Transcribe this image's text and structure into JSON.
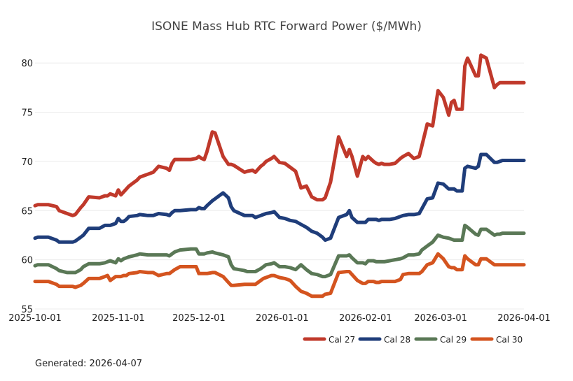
{
  "title": "ISONE Mass Hub RTC Forward Power ($/MWh)",
  "footer": "Generated: 2026-04-07",
  "chart_data": {
    "type": "line",
    "title": "ISONE Mass Hub RTC Forward Power ($/MWh)",
    "xlabel": "",
    "ylabel": "",
    "ylim": [
      55,
      82
    ],
    "xlim_days": [
      0,
      182
    ],
    "x_tick_days": [
      0,
      31,
      61,
      92,
      123,
      151,
      182
    ],
    "x_tick_labels": [
      "2025-10-01",
      "2025-11-01",
      "2025-12-01",
      "2026-01-01",
      "2026-02-01",
      "2026-03-01",
      "2026-04-01"
    ],
    "y_ticks": [
      55,
      60,
      65,
      70,
      75,
      80
    ],
    "y_tick_labels": [
      "55",
      "60",
      "65",
      "70",
      "75",
      "80"
    ],
    "grid": true,
    "legend_position": "bottom-right",
    "x_days": [
      0,
      1,
      5,
      8,
      9,
      12,
      14,
      15,
      17,
      18,
      20,
      24,
      26,
      27,
      28,
      30,
      31,
      32,
      33,
      34,
      35,
      38,
      39,
      42,
      43,
      44,
      46,
      49,
      50,
      51,
      52,
      54,
      58,
      60,
      61,
      62,
      63,
      64,
      66,
      67,
      70,
      72,
      73,
      74,
      78,
      79,
      81,
      82,
      84,
      85,
      86,
      88,
      89,
      91,
      93,
      95,
      97,
      99,
      101,
      103,
      105,
      107,
      108,
      110,
      113,
      116,
      117,
      118,
      120,
      122,
      123,
      124,
      126,
      127,
      128,
      129,
      130,
      132,
      134,
      136,
      137,
      139,
      141,
      143,
      144,
      146,
      148,
      150,
      152,
      154,
      155,
      156,
      157,
      159,
      160,
      161,
      164,
      165,
      166,
      168,
      171,
      172,
      173,
      174,
      176,
      177,
      180,
      182
    ],
    "series": [
      {
        "name": "Cal 27",
        "color": "#c0392b",
        "values": [
          65.5,
          65.6,
          65.6,
          65.4,
          65.0,
          64.7,
          64.5,
          64.6,
          65.3,
          65.6,
          66.4,
          66.3,
          66.5,
          66.5,
          66.7,
          66.5,
          67.1,
          66.6,
          66.9,
          67.2,
          67.5,
          68.1,
          68.4,
          68.7,
          68.8,
          68.9,
          69.5,
          69.3,
          69.1,
          69.8,
          70.2,
          70.2,
          70.2,
          70.3,
          70.5,
          70.3,
          70.2,
          71.0,
          73.0,
          72.9,
          70.5,
          69.7,
          69.7,
          69.6,
          68.9,
          69.0,
          69.1,
          68.9,
          69.5,
          69.7,
          70.0,
          70.3,
          70.5,
          69.9,
          69.8,
          69.4,
          69.0,
          67.3,
          67.5,
          66.4,
          66.1,
          66.1,
          66.3,
          67.9,
          72.5,
          70.5,
          71.2,
          70.5,
          68.5,
          70.5,
          70.2,
          70.5,
          70.0,
          69.8,
          69.7,
          69.8,
          69.7,
          69.7,
          69.8,
          70.3,
          70.5,
          70.8,
          70.3,
          70.5,
          71.6,
          73.8,
          73.6,
          77.2,
          76.5,
          74.7,
          76.0,
          76.2,
          75.3,
          75.3,
          79.7,
          80.5,
          78.7,
          78.7,
          80.8,
          80.5,
          77.5,
          77.8,
          78.0,
          78.0,
          78.0,
          78.0,
          78.0,
          78.0
        ]
      },
      {
        "name": "Cal 28",
        "color": "#1f3d7a",
        "values": [
          62.2,
          62.3,
          62.3,
          62.0,
          61.8,
          61.8,
          61.8,
          61.9,
          62.3,
          62.5,
          63.2,
          63.2,
          63.5,
          63.5,
          63.5,
          63.7,
          64.2,
          63.9,
          63.9,
          64.1,
          64.4,
          64.5,
          64.6,
          64.5,
          64.5,
          64.5,
          64.7,
          64.6,
          64.5,
          64.8,
          65.0,
          65.0,
          65.1,
          65.1,
          65.3,
          65.2,
          65.2,
          65.5,
          66.0,
          66.2,
          66.8,
          66.3,
          65.4,
          65.0,
          64.5,
          64.5,
          64.5,
          64.3,
          64.5,
          64.6,
          64.7,
          64.8,
          64.9,
          64.3,
          64.2,
          64.0,
          63.9,
          63.6,
          63.3,
          62.9,
          62.7,
          62.3,
          62.0,
          62.2,
          64.3,
          64.6,
          65.0,
          64.3,
          63.8,
          63.8,
          63.8,
          64.1,
          64.1,
          64.1,
          64.0,
          64.1,
          64.1,
          64.1,
          64.2,
          64.4,
          64.5,
          64.6,
          64.6,
          64.7,
          65.2,
          66.2,
          66.3,
          67.8,
          67.7,
          67.2,
          67.2,
          67.2,
          67.0,
          67.0,
          69.3,
          69.5,
          69.3,
          69.5,
          70.7,
          70.7,
          69.9,
          69.9,
          70.0,
          70.1,
          70.1,
          70.1,
          70.1,
          70.1
        ]
      },
      {
        "name": "Cal 29",
        "color": "#5a7856",
        "values": [
          59.4,
          59.5,
          59.5,
          59.1,
          58.9,
          58.7,
          58.7,
          58.7,
          59.0,
          59.3,
          59.6,
          59.6,
          59.7,
          59.8,
          59.9,
          59.7,
          60.1,
          59.9,
          60.1,
          60.2,
          60.3,
          60.5,
          60.6,
          60.5,
          60.5,
          60.5,
          60.5,
          60.5,
          60.4,
          60.6,
          60.8,
          61.0,
          61.1,
          61.1,
          60.6,
          60.6,
          60.6,
          60.7,
          60.8,
          60.7,
          60.5,
          60.3,
          59.5,
          59.1,
          58.9,
          58.8,
          58.8,
          58.8,
          59.1,
          59.3,
          59.5,
          59.6,
          59.7,
          59.3,
          59.3,
          59.2,
          59.0,
          59.5,
          59.0,
          58.6,
          58.5,
          58.3,
          58.3,
          58.5,
          60.4,
          60.4,
          60.5,
          60.2,
          59.7,
          59.7,
          59.6,
          59.9,
          59.9,
          59.8,
          59.8,
          59.8,
          59.8,
          59.9,
          60.0,
          60.1,
          60.2,
          60.5,
          60.5,
          60.6,
          61.0,
          61.4,
          61.8,
          62.5,
          62.3,
          62.2,
          62.1,
          62.0,
          62.0,
          62.0,
          63.5,
          63.3,
          62.6,
          62.5,
          63.1,
          63.1,
          62.5,
          62.6,
          62.6,
          62.7,
          62.7,
          62.7,
          62.7,
          62.7
        ]
      },
      {
        "name": "Cal 30",
        "color": "#d4541f",
        "values": [
          57.8,
          57.8,
          57.8,
          57.5,
          57.3,
          57.3,
          57.3,
          57.2,
          57.4,
          57.6,
          58.1,
          58.1,
          58.3,
          58.4,
          57.9,
          58.3,
          58.3,
          58.3,
          58.4,
          58.4,
          58.6,
          58.7,
          58.8,
          58.7,
          58.7,
          58.7,
          58.4,
          58.6,
          58.6,
          58.8,
          59.0,
          59.3,
          59.3,
          59.3,
          58.6,
          58.6,
          58.6,
          58.6,
          58.7,
          58.7,
          58.3,
          57.7,
          57.4,
          57.4,
          57.5,
          57.5,
          57.5,
          57.5,
          57.9,
          58.1,
          58.2,
          58.4,
          58.4,
          58.2,
          58.1,
          57.9,
          57.3,
          56.8,
          56.6,
          56.3,
          56.3,
          56.3,
          56.5,
          56.6,
          58.7,
          58.8,
          58.8,
          58.5,
          57.9,
          57.6,
          57.6,
          57.8,
          57.8,
          57.7,
          57.7,
          57.8,
          57.8,
          57.8,
          57.8,
          58.0,
          58.5,
          58.6,
          58.6,
          58.6,
          58.8,
          59.5,
          59.7,
          60.6,
          60.1,
          59.3,
          59.2,
          59.2,
          59.0,
          59.0,
          60.4,
          60.1,
          59.5,
          59.5,
          60.1,
          60.1,
          59.5,
          59.5,
          59.5,
          59.5,
          59.5,
          59.5,
          59.5,
          59.5
        ]
      }
    ]
  }
}
